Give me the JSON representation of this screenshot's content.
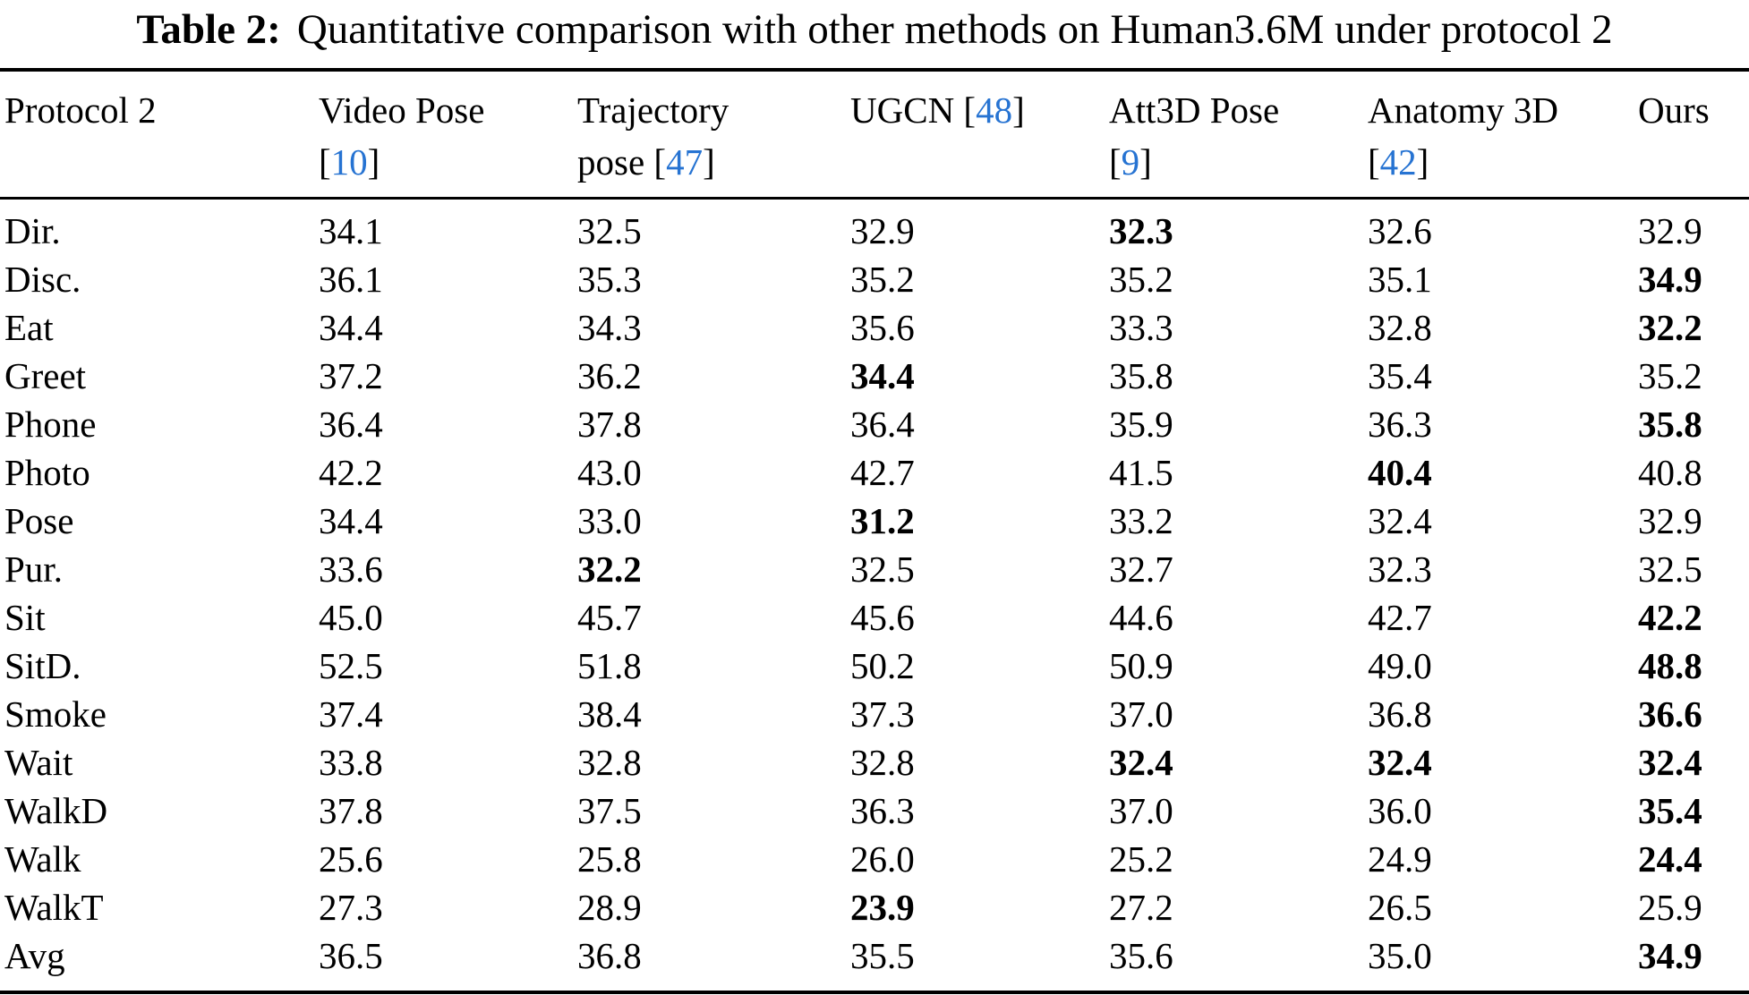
{
  "caption": {
    "label": "Table 2:",
    "text": "Quantitative comparison with other methods on Human3.6M under protocol 2"
  },
  "accent_color": "#2673d2",
  "table": {
    "columns": [
      {
        "name": "protocol-2",
        "line1": [
          {
            "t": "Protocol 2"
          }
        ],
        "line2": []
      },
      {
        "name": "video-pose",
        "line1": [
          {
            "t": "Video Pose"
          }
        ],
        "line2": [
          {
            "t": "["
          },
          {
            "t": "10",
            "cite": true
          },
          {
            "t": "]"
          }
        ]
      },
      {
        "name": "trajectory-pose",
        "line1": [
          {
            "t": "Trajectory"
          }
        ],
        "line2": [
          {
            "t": "pose ["
          },
          {
            "t": "47",
            "cite": true
          },
          {
            "t": "]"
          }
        ]
      },
      {
        "name": "ugcn",
        "line1": [
          {
            "t": "UGCN ["
          },
          {
            "t": "48",
            "cite": true
          },
          {
            "t": "]"
          }
        ],
        "line2": []
      },
      {
        "name": "att3d-pose",
        "line1": [
          {
            "t": "Att3D Pose"
          }
        ],
        "line2": [
          {
            "t": "["
          },
          {
            "t": "9",
            "cite": true
          },
          {
            "t": "]"
          }
        ]
      },
      {
        "name": "anatomy-3d",
        "line1": [
          {
            "t": "Anatomy 3D"
          }
        ],
        "line2": [
          {
            "t": "["
          },
          {
            "t": "42",
            "cite": true
          },
          {
            "t": "]"
          }
        ]
      },
      {
        "name": "ours",
        "line1": [
          {
            "t": "Ours"
          }
        ],
        "line2": []
      }
    ],
    "rows": [
      {
        "action": "Dir.",
        "values": [
          {
            "v": "34.1"
          },
          {
            "v": "32.5"
          },
          {
            "v": "32.9"
          },
          {
            "v": "32.3",
            "bold": true
          },
          {
            "v": "32.6"
          },
          {
            "v": "32.9"
          }
        ]
      },
      {
        "action": "Disc.",
        "values": [
          {
            "v": "36.1"
          },
          {
            "v": "35.3"
          },
          {
            "v": "35.2"
          },
          {
            "v": "35.2"
          },
          {
            "v": "35.1"
          },
          {
            "v": "34.9",
            "bold": true
          }
        ]
      },
      {
        "action": "Eat",
        "values": [
          {
            "v": "34.4"
          },
          {
            "v": "34.3"
          },
          {
            "v": "35.6"
          },
          {
            "v": "33.3"
          },
          {
            "v": "32.8"
          },
          {
            "v": "32.2",
            "bold": true
          }
        ]
      },
      {
        "action": "Greet",
        "values": [
          {
            "v": "37.2"
          },
          {
            "v": "36.2"
          },
          {
            "v": "34.4",
            "bold": true
          },
          {
            "v": "35.8"
          },
          {
            "v": "35.4"
          },
          {
            "v": "35.2"
          }
        ]
      },
      {
        "action": "Phone",
        "values": [
          {
            "v": "36.4"
          },
          {
            "v": "37.8"
          },
          {
            "v": "36.4"
          },
          {
            "v": "35.9"
          },
          {
            "v": "36.3"
          },
          {
            "v": "35.8",
            "bold": true
          }
        ]
      },
      {
        "action": "Photo",
        "values": [
          {
            "v": "42.2"
          },
          {
            "v": "43.0"
          },
          {
            "v": "42.7"
          },
          {
            "v": "41.5"
          },
          {
            "v": "40.4",
            "bold": true
          },
          {
            "v": "40.8"
          }
        ]
      },
      {
        "action": "Pose",
        "values": [
          {
            "v": "34.4"
          },
          {
            "v": "33.0"
          },
          {
            "v": "31.2",
            "bold": true
          },
          {
            "v": "33.2"
          },
          {
            "v": "32.4"
          },
          {
            "v": "32.9"
          }
        ]
      },
      {
        "action": "Pur.",
        "values": [
          {
            "v": "33.6"
          },
          {
            "v": "32.2",
            "bold": true
          },
          {
            "v": "32.5"
          },
          {
            "v": "32.7"
          },
          {
            "v": "32.3"
          },
          {
            "v": "32.5"
          }
        ]
      },
      {
        "action": "Sit",
        "values": [
          {
            "v": "45.0"
          },
          {
            "v": "45.7"
          },
          {
            "v": "45.6"
          },
          {
            "v": "44.6"
          },
          {
            "v": "42.7"
          },
          {
            "v": "42.2",
            "bold": true
          }
        ]
      },
      {
        "action": "SitD.",
        "values": [
          {
            "v": "52.5"
          },
          {
            "v": "51.8"
          },
          {
            "v": "50.2"
          },
          {
            "v": "50.9"
          },
          {
            "v": "49.0"
          },
          {
            "v": "48.8",
            "bold": true
          }
        ]
      },
      {
        "action": "Smoke",
        "values": [
          {
            "v": "37.4"
          },
          {
            "v": "38.4"
          },
          {
            "v": "37.3"
          },
          {
            "v": "37.0"
          },
          {
            "v": "36.8"
          },
          {
            "v": "36.6",
            "bold": true
          }
        ]
      },
      {
        "action": "Wait",
        "values": [
          {
            "v": "33.8"
          },
          {
            "v": "32.8"
          },
          {
            "v": "32.8"
          },
          {
            "v": "32.4",
            "bold": true
          },
          {
            "v": "32.4",
            "bold": true
          },
          {
            "v": "32.4",
            "bold": true
          }
        ]
      },
      {
        "action": "WalkD",
        "values": [
          {
            "v": "37.8"
          },
          {
            "v": "37.5"
          },
          {
            "v": "36.3"
          },
          {
            "v": "37.0"
          },
          {
            "v": "36.0"
          },
          {
            "v": "35.4",
            "bold": true
          }
        ]
      },
      {
        "action": "Walk",
        "values": [
          {
            "v": "25.6"
          },
          {
            "v": "25.8"
          },
          {
            "v": "26.0"
          },
          {
            "v": "25.2"
          },
          {
            "v": "24.9"
          },
          {
            "v": "24.4",
            "bold": true
          }
        ]
      },
      {
        "action": "WalkT",
        "values": [
          {
            "v": "27.3"
          },
          {
            "v": "28.9"
          },
          {
            "v": "23.9",
            "bold": true
          },
          {
            "v": "27.2"
          },
          {
            "v": "26.5"
          },
          {
            "v": "25.9"
          }
        ]
      },
      {
        "action": "Avg",
        "values": [
          {
            "v": "36.5"
          },
          {
            "v": "36.8"
          },
          {
            "v": "35.5"
          },
          {
            "v": "35.6"
          },
          {
            "v": "35.0"
          },
          {
            "v": "34.9",
            "bold": true
          }
        ]
      }
    ]
  }
}
